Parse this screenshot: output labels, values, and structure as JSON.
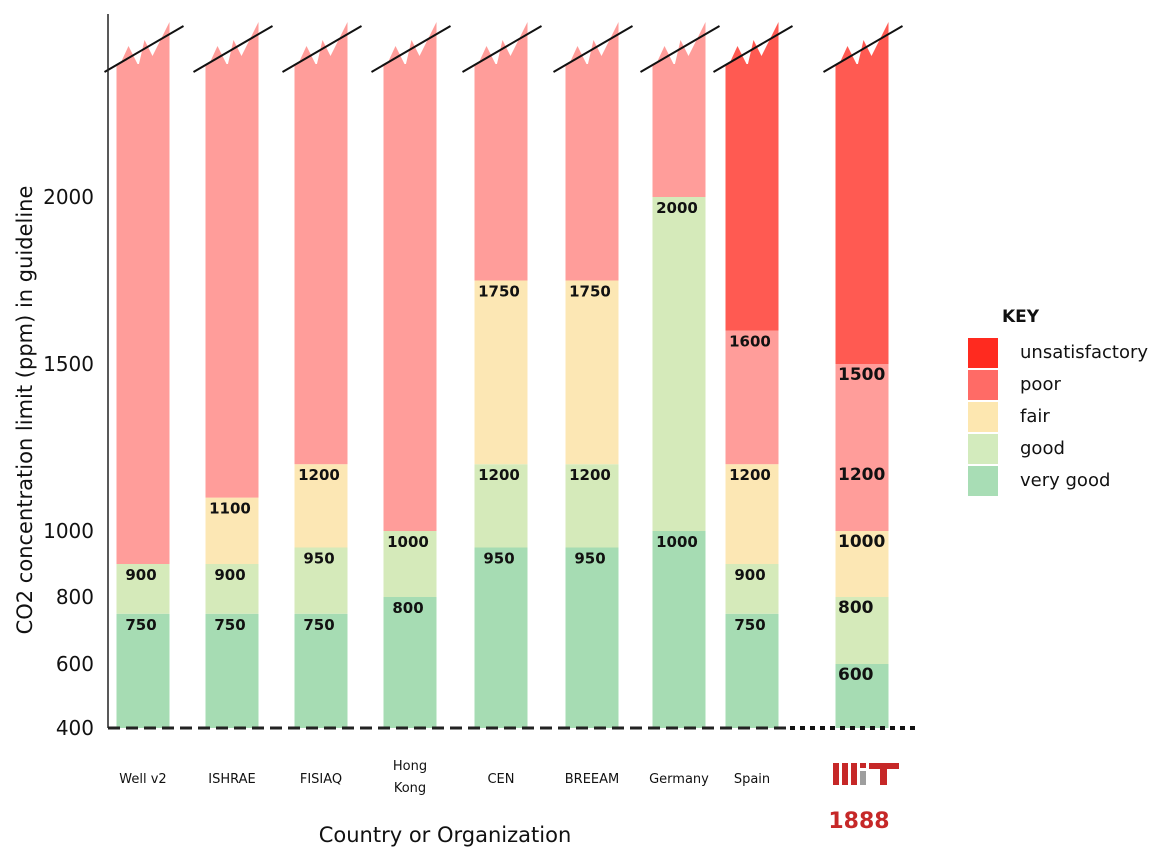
{
  "chart_data": {
    "type": "bar",
    "subtype": "stacked-range",
    "ylabel": "CO2 concentration limit (ppm) in guideline",
    "xlabel": "Country or Organization",
    "ylim": [
      400,
      2400
    ],
    "yticks": [
      "400",
      "600",
      "800",
      "1000",
      "1500",
      "2000"
    ],
    "y_axis_broken_at_top": true,
    "colors": {
      "unsatisfactory": "#ff5a52",
      "poor": "#ff9d9a",
      "fair": "#fce7b4",
      "good": "#d5eaba",
      "very_good": "#a6dcb3"
    },
    "key": {
      "title": "KEY",
      "items": [
        {
          "label": "unsatisfactory",
          "color": "#ff2a1f"
        },
        {
          "label": "poor",
          "color": "#ff6b66"
        },
        {
          "label": "fair",
          "color": "#fde7b0"
        },
        {
          "label": "good",
          "color": "#d3ebbd"
        },
        {
          "label": "very good",
          "color": "#a8ddb5"
        }
      ]
    },
    "categories": [
      {
        "name": "Well v2",
        "very_good": 750,
        "good": 900,
        "fair": null,
        "poor_from": 900,
        "unsatisfactory_from": null,
        "labels": [
          "750",
          "900"
        ]
      },
      {
        "name": "ISHRAE",
        "very_good": 750,
        "good": 900,
        "fair": 1100,
        "poor_from": 1100,
        "unsatisfactory_from": null,
        "labels": [
          "750",
          "900",
          "1100"
        ]
      },
      {
        "name": "FISIAQ",
        "very_good": 750,
        "good": 950,
        "fair": 1200,
        "poor_from": 1200,
        "unsatisfactory_from": null,
        "labels": [
          "750",
          "950",
          "1200"
        ]
      },
      {
        "name": "Hong Kong",
        "very_good": 800,
        "good": 1000,
        "fair": null,
        "poor_from": 1000,
        "unsatisfactory_from": null,
        "labels": [
          "800",
          "1000"
        ]
      },
      {
        "name": "CEN",
        "very_good": 950,
        "good": 1200,
        "fair": 1750,
        "poor_from": 1750,
        "unsatisfactory_from": null,
        "labels": [
          "950",
          "1200",
          "1750"
        ]
      },
      {
        "name": "BREEAM",
        "very_good": 950,
        "good": 1200,
        "fair": 1750,
        "poor_from": 1750,
        "unsatisfactory_from": null,
        "labels": [
          "950",
          "1200",
          "1750"
        ]
      },
      {
        "name": "Germany",
        "very_good": 1000,
        "good": 2000,
        "fair": null,
        "poor_from": 2000,
        "unsatisfactory_from": null,
        "labels": [
          "1000",
          "2000"
        ]
      },
      {
        "name": "Spain",
        "very_good": 750,
        "good": 900,
        "fair": 1200,
        "poor_from": 1200,
        "unsatisfactory_from": 1600,
        "labels": [
          "750",
          "900",
          "1200",
          "1600"
        ]
      },
      {
        "name": "MIT",
        "very_good": 600,
        "good": 800,
        "fair": 1000,
        "poor_from": 1000,
        "unsatisfactory_from": 1500,
        "labels": [
          "600",
          "800",
          "1000",
          "1200",
          "1500"
        ]
      }
    ],
    "mit_logo": {
      "year": "1888"
    },
    "baseline": 400
  }
}
